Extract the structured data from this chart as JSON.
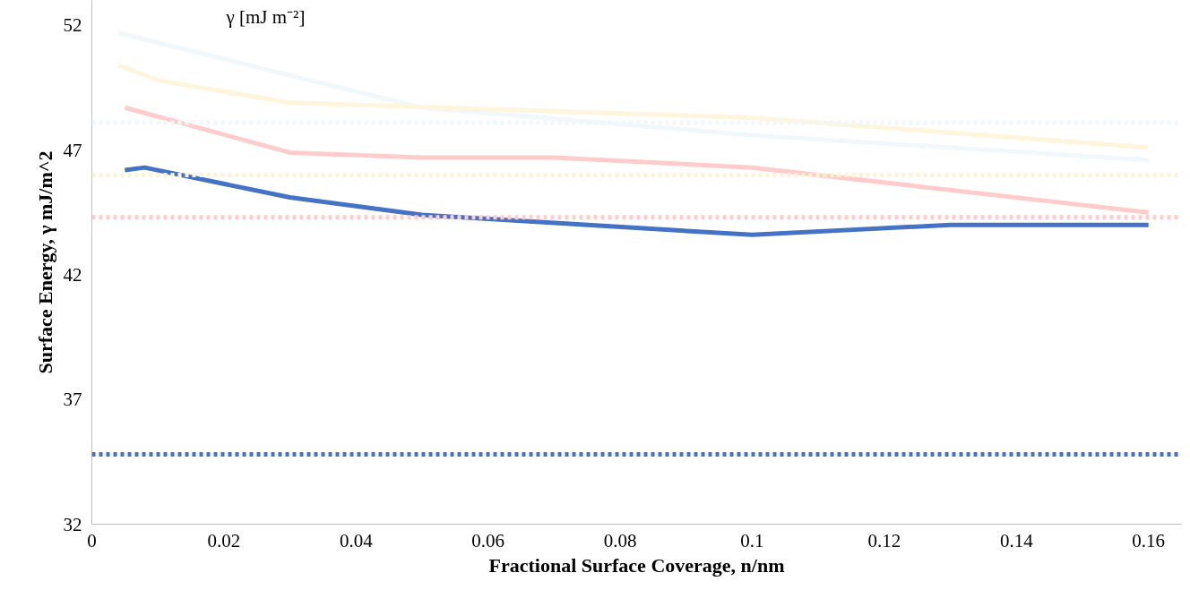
{
  "chart_data": {
    "type": "line",
    "xlabel": "Fractional Surface Coverage, n/nm",
    "ylabel": "Surface Energy, γ mJ/m^2",
    "annotations": [
      "γ [mJ m⁻²]"
    ],
    "xlim": [
      0,
      0.165
    ],
    "ylim": [
      32,
      53
    ],
    "xticks": [
      0,
      0.02,
      0.04,
      0.06,
      0.08,
      0.1,
      0.12,
      0.14,
      0.16
    ],
    "yticks": [
      32,
      37,
      42,
      47,
      52
    ],
    "grid": false,
    "marker": "none",
    "line_style": "solid",
    "series": [
      {
        "color": "#f0f8fc",
        "x": [
          0.004,
          0.03,
          0.05,
          0.1,
          0.16
        ],
        "values": [
          51.7,
          50.0,
          48.7,
          47.6,
          46.6
        ]
      },
      {
        "color": "#fff4dc",
        "x": [
          0.004,
          0.01,
          0.03,
          0.1,
          0.16
        ],
        "values": [
          50.4,
          49.8,
          48.9,
          48.3,
          47.1
        ]
      },
      {
        "color": "#ffcccc",
        "x": [
          0.005,
          0.03,
          0.05,
          0.07,
          0.1,
          0.16
        ],
        "values": [
          48.7,
          46.9,
          46.7,
          46.7,
          46.3,
          44.5
        ]
      },
      {
        "color": "#4472c4",
        "x": [
          0.005,
          0.008,
          0.03,
          0.05,
          0.1,
          0.13,
          0.16
        ],
        "values": [
          46.2,
          46.3,
          45.1,
          44.4,
          43.6,
          44.0,
          44.0
        ]
      }
    ],
    "ref_lines": [
      {
        "axis": "y",
        "value": 48.1,
        "color": "#f0f6fc",
        "line_style": "dotted"
      },
      {
        "axis": "y",
        "value": 46.0,
        "color": "#fff2d0",
        "line_style": "dotted"
      },
      {
        "axis": "y",
        "value": 44.3,
        "color": "#ffcccc",
        "line_style": "dotted"
      },
      {
        "axis": "y",
        "value": 34.8,
        "color": "#4472c4",
        "line_style": "dotted"
      }
    ]
  }
}
